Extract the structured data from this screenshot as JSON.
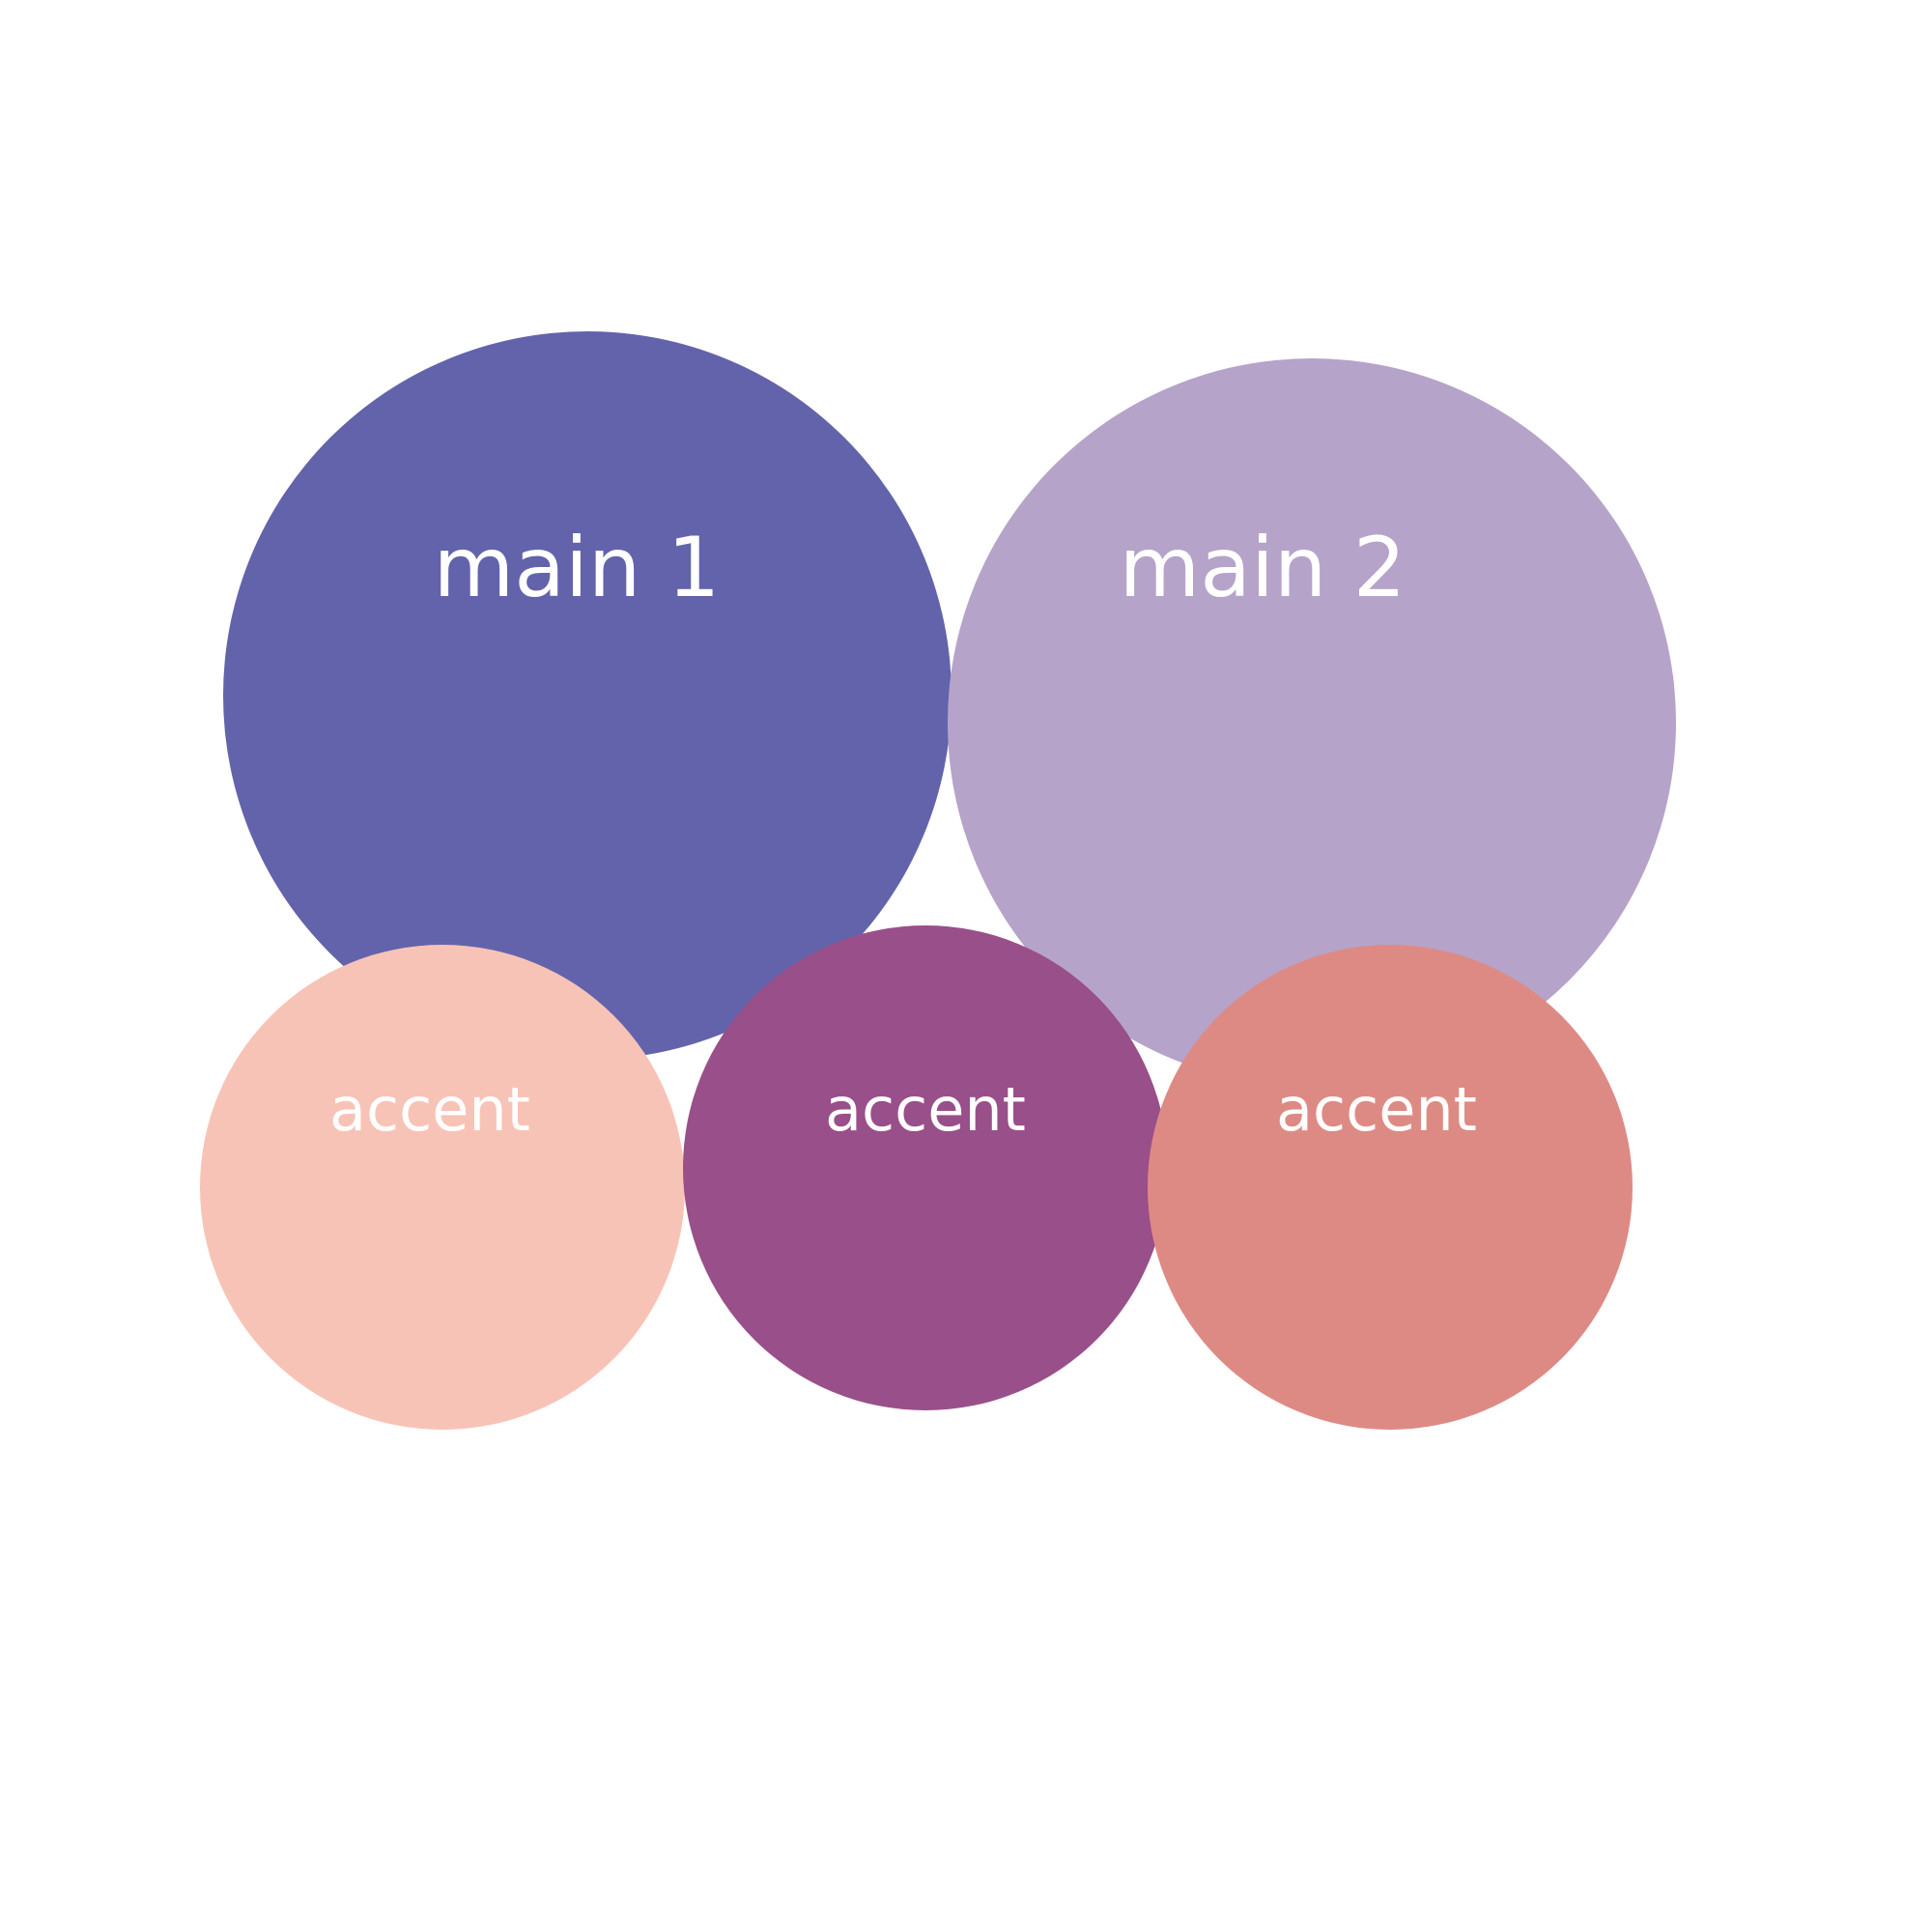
{
  "nodes": [
    {
      "id": "main-1",
      "label": "main 1",
      "color": "#6363ab"
    },
    {
      "id": "main-2",
      "label": "main 2",
      "color": "#b6a3c9"
    },
    {
      "id": "accent-1",
      "label": "accent",
      "color": "#f8c3b7"
    },
    {
      "id": "accent-2",
      "label": "accent",
      "color": "#994f89"
    },
    {
      "id": "accent-3",
      "label": "accent",
      "color": "#de8a84"
    }
  ]
}
